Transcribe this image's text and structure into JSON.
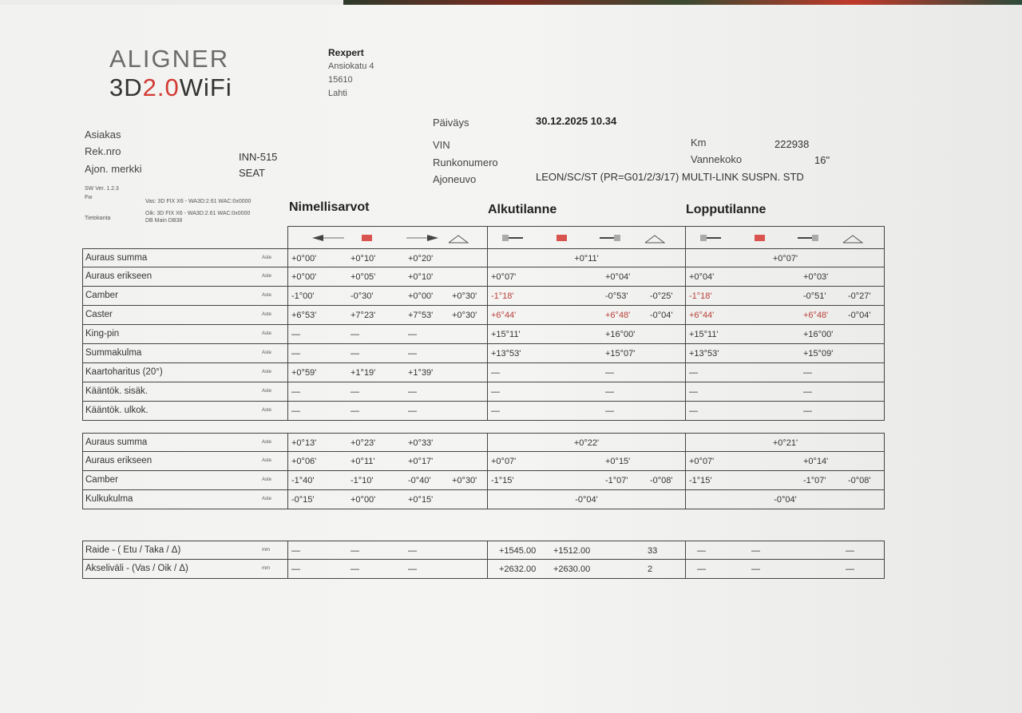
{
  "logo": {
    "line1": "ALIGNER",
    "line2_a": "3D",
    "line2_b": "2.0",
    "line2_c": "WiFi"
  },
  "company": {
    "name": "Rexpert",
    "street": "Ansiokatu 4",
    "zip": "15610",
    "city": "Lahti"
  },
  "customer": {
    "asiakas_label": "Asiakas",
    "rek_label": "Rek.nro",
    "rek_value": "INN-515",
    "merkki_label": "Ajon. merkki",
    "merkki_value": "SEAT"
  },
  "vehicle": {
    "date_label": "Päiväys",
    "date_value": "30.12.2025 10.34",
    "vin_label": "VIN",
    "runko_label": "Runkonumero",
    "ajoneuvo_label": "Ajoneuvo",
    "ajoneuvo_value": "LEON/SC/ST (PR=G01/2/3/17) MULTI-LINK SUSPN. STD",
    "km_label": "Km",
    "km_value": "222938",
    "vanne_label": "Vannekoko",
    "vanne_value": "16\""
  },
  "software": {
    "sw": "SW Ver. 1.2.3",
    "fw": "Fw",
    "vas": "Vas: 3D FIX X6 - WA3D:2.61 WAC:0x0000",
    "oik": "Oik: 3D FIX X6 - WA3D:2.61 WAC:0x0000",
    "db_label": "Tietokanta",
    "db_value": "DB Main DB38"
  },
  "sections": {
    "nominal": "Nimellisarvot",
    "initial": "Alkutilanne",
    "final": "Lopputilanne"
  },
  "header_icons": {
    "nominal": [
      "arrow-left-icon",
      "red-square-icon",
      "arrow-right-icon",
      "triangle-icon"
    ],
    "measured": [
      "left-wheel-icon",
      "red-square-icon",
      "right-wheel-icon",
      "triangle-icon"
    ]
  },
  "colors": {
    "highlight": "#b8413a",
    "marker": "#d9534f"
  },
  "front": [
    {
      "label": "Auraus summa",
      "unit": "Aste",
      "nominal": [
        "+0°00'",
        "+0°10'",
        "+0°20'",
        ""
      ],
      "initial": {
        "total": "+0°11'"
      },
      "final": {
        "total": "+0°07'"
      }
    },
    {
      "label": "Auraus erikseen",
      "unit": "Aste",
      "nominal": [
        "+0°00'",
        "+0°05'",
        "+0°10'",
        ""
      ],
      "initial": {
        "values": [
          "+0°07'",
          "+0°04'",
          ""
        ]
      },
      "final": {
        "values": [
          "+0°04'",
          "+0°03'",
          ""
        ]
      }
    },
    {
      "label": "Camber",
      "unit": "Aste",
      "nominal": [
        "-1°00'",
        "-0°30'",
        "+0°00'",
        "+0°30'"
      ],
      "initial": {
        "values": [
          "-1°18'",
          "-0°53'",
          "-0°25'"
        ],
        "red": [
          true,
          false,
          false
        ]
      },
      "final": {
        "values": [
          "-1°18'",
          "-0°51'",
          "-0°27'"
        ],
        "red": [
          true,
          false,
          false
        ]
      }
    },
    {
      "label": "Caster",
      "unit": "Aste",
      "nominal": [
        "+6°53'",
        "+7°23'",
        "+7°53'",
        "+0°30'"
      ],
      "initial": {
        "values": [
          "+6°44'",
          "+6°48'",
          "-0°04'"
        ],
        "red": [
          true,
          true,
          false
        ]
      },
      "final": {
        "values": [
          "+6°44'",
          "+6°48'",
          "-0°04'"
        ],
        "red": [
          true,
          true,
          false
        ]
      }
    },
    {
      "label": "King-pin",
      "unit": "Aste",
      "nominal": [
        "—",
        "—",
        "—",
        ""
      ],
      "initial": {
        "values": [
          "+15°11'",
          "+16°00'",
          ""
        ]
      },
      "final": {
        "values": [
          "+15°11'",
          "+16°00'",
          ""
        ]
      }
    },
    {
      "label": "Summakulma",
      "unit": "Aste",
      "nominal": [
        "—",
        "—",
        "—",
        ""
      ],
      "initial": {
        "values": [
          "+13°53'",
          "+15°07'",
          ""
        ]
      },
      "final": {
        "values": [
          "+13°53'",
          "+15°09'",
          ""
        ]
      }
    },
    {
      "label": "Kaartoharitus (20°)",
      "unit": "Aste",
      "nominal": [
        "+0°59'",
        "+1°19'",
        "+1°39'",
        ""
      ],
      "initial": {
        "values": [
          "—",
          "—",
          ""
        ]
      },
      "final": {
        "values": [
          "—",
          "—",
          ""
        ]
      }
    },
    {
      "label": "Kääntök. sisäk.",
      "unit": "Aste",
      "nominal": [
        "—",
        "—",
        "—",
        ""
      ],
      "initial": {
        "values": [
          "—",
          "—",
          ""
        ]
      },
      "final": {
        "values": [
          "—",
          "—",
          ""
        ]
      }
    },
    {
      "label": "Kääntök. ulkok.",
      "unit": "Aste",
      "nominal": [
        "—",
        "—",
        "—",
        ""
      ],
      "initial": {
        "values": [
          "—",
          "—",
          ""
        ]
      },
      "final": {
        "values": [
          "—",
          "—",
          ""
        ]
      }
    }
  ],
  "rear": [
    {
      "label": "Auraus summa",
      "unit": "Aste",
      "nominal": [
        "+0°13'",
        "+0°23'",
        "+0°33'",
        ""
      ],
      "initial": {
        "total": "+0°22'"
      },
      "final": {
        "total": "+0°21'"
      }
    },
    {
      "label": "Auraus erikseen",
      "unit": "Aste",
      "nominal": [
        "+0°06'",
        "+0°11'",
        "+0°17'",
        ""
      ],
      "initial": {
        "values": [
          "+0°07'",
          "+0°15'",
          ""
        ]
      },
      "final": {
        "values": [
          "+0°07'",
          "+0°14'",
          ""
        ]
      }
    },
    {
      "label": "Camber",
      "unit": "Aste",
      "nominal": [
        "-1°40'",
        "-1°10'",
        "-0°40'",
        "+0°30'"
      ],
      "initial": {
        "values": [
          "-1°15'",
          "-1°07'",
          "-0°08'"
        ]
      },
      "final": {
        "values": [
          "-1°15'",
          "-1°07'",
          "-0°08'"
        ]
      }
    },
    {
      "label": "Kulkukulma",
      "unit": "Aste",
      "nominal": [
        "-0°15'",
        "+0°00'",
        "+0°15'",
        ""
      ],
      "initial": {
        "total": "-0°04'"
      },
      "final": {
        "total": "-0°04'"
      }
    }
  ],
  "dimensions": [
    {
      "label": "Raide - ( Etu / Taka / Δ)",
      "unit": "mm",
      "nominal": [
        "—",
        "—",
        "—",
        ""
      ],
      "initial": {
        "values": [
          "+1545.00",
          "+1512.00",
          "33"
        ],
        "dim": true
      },
      "final": {
        "values": [
          "—",
          "—",
          "—"
        ],
        "dim": true
      }
    },
    {
      "label": "Akseliväli - (Vas / Oik / Δ)",
      "unit": "mm",
      "nominal": [
        "—",
        "—",
        "—",
        ""
      ],
      "initial": {
        "values": [
          "+2632.00",
          "+2630.00",
          "2"
        ],
        "dim": true
      },
      "final": {
        "values": [
          "—",
          "—",
          "—"
        ],
        "dim": true
      }
    }
  ]
}
